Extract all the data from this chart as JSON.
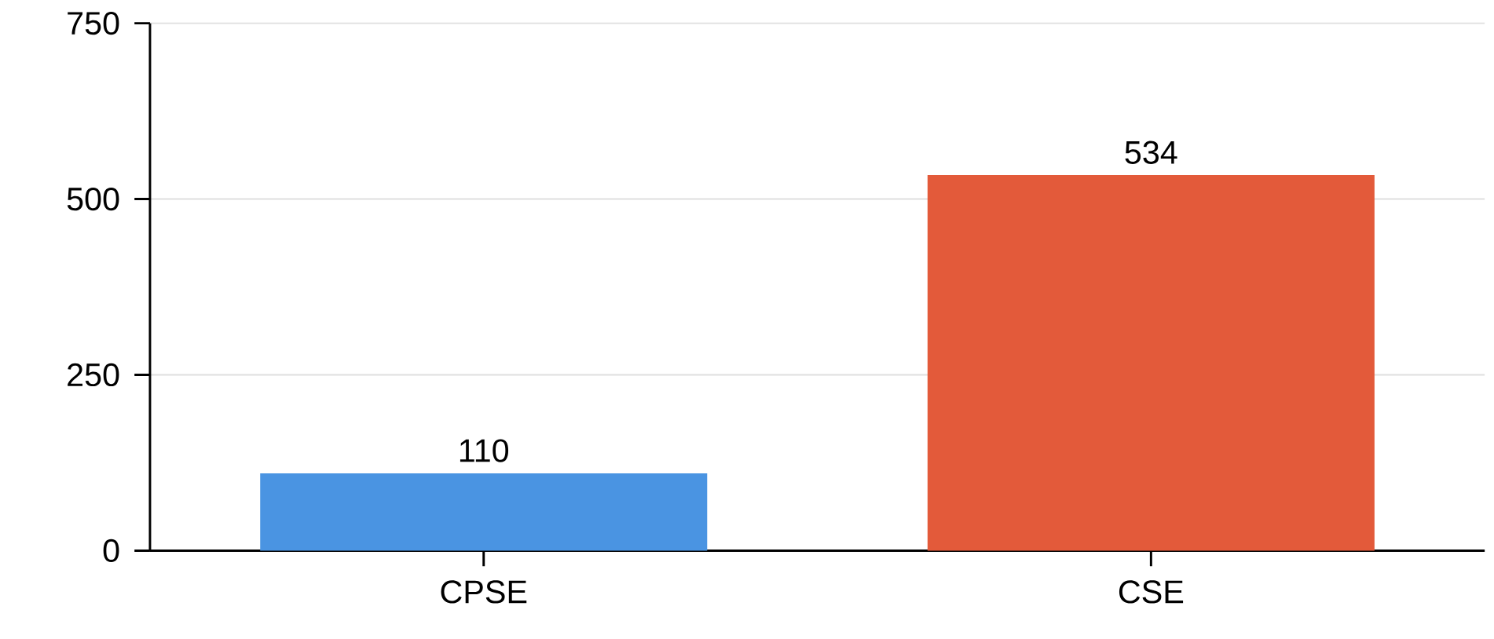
{
  "chart_data": {
    "type": "bar",
    "categories": [
      "CPSE",
      "CSE"
    ],
    "values": [
      110,
      534
    ],
    "colors": [
      "#4a94e2",
      "#e35a3a"
    ],
    "ylim": [
      0,
      750
    ],
    "yticks": [
      0,
      250,
      500,
      750
    ],
    "grid": "y",
    "data_labels": true
  }
}
